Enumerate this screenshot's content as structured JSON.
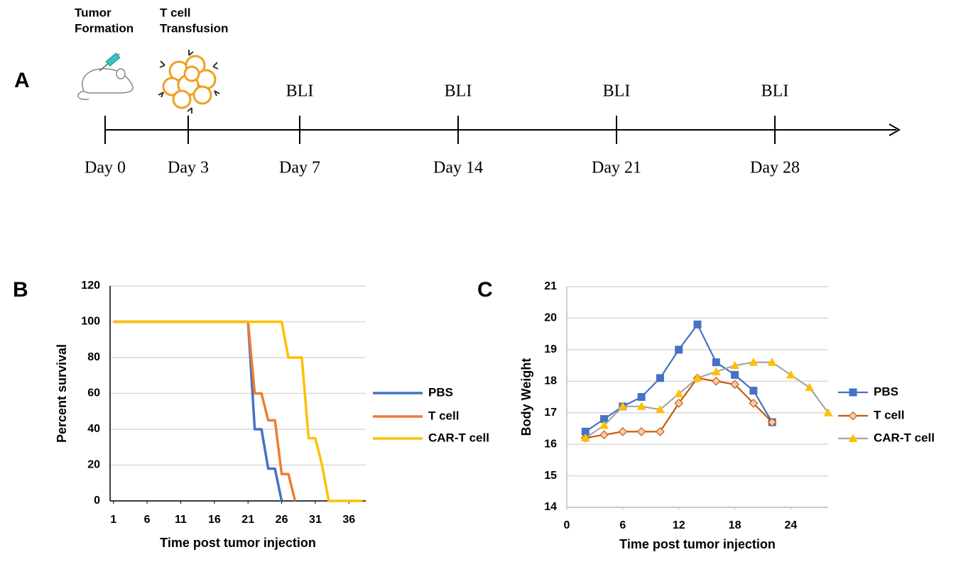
{
  "timeline": {
    "label": "A",
    "events": [
      {
        "day": "Day 0",
        "note": [
          "Tumor",
          "Formation"
        ]
      },
      {
        "day": "Day 3",
        "note": [
          "T cell",
          "Transfusion"
        ]
      },
      {
        "day": "Day 7",
        "note": [
          "BLI"
        ]
      },
      {
        "day": "Day 14",
        "note": [
          "BLI"
        ]
      },
      {
        "day": "Day 21",
        "note": [
          "BLI"
        ]
      },
      {
        "day": "Day 28",
        "note": [
          "BLI"
        ]
      }
    ]
  },
  "chart_data": [
    {
      "type": "line",
      "label": "B",
      "x_label": "Time post tumor injection",
      "y_label": "Percent survival",
      "xlim": [
        0.5,
        38.5
      ],
      "xticks": [
        1,
        6,
        11,
        16,
        21,
        26,
        31,
        36
      ],
      "ylim": [
        0,
        120
      ],
      "yticks": [
        0,
        20,
        40,
        60,
        80,
        100,
        120
      ],
      "grid": true,
      "legend": "right",
      "series": [
        {
          "name": "PBS",
          "color": "#4472c4",
          "marker": "none",
          "x": [
            1,
            21,
            22,
            23,
            24,
            25,
            26
          ],
          "values": [
            100,
            100,
            40,
            40,
            18,
            18,
            0
          ]
        },
        {
          "name": "T cell",
          "color": "#ed7d31",
          "marker": "none",
          "x": [
            1,
            21,
            22,
            23,
            24,
            25,
            26,
            27,
            28
          ],
          "values": [
            100,
            100,
            60,
            60,
            45,
            45,
            15,
            15,
            0
          ]
        },
        {
          "name": "CAR-T cell",
          "color": "#ffc000",
          "marker": "none",
          "x": [
            1,
            26,
            27,
            29,
            30,
            31,
            32,
            33,
            38
          ],
          "values": [
            100,
            100,
            80,
            80,
            35,
            35,
            20,
            0,
            0
          ]
        }
      ]
    },
    {
      "type": "line",
      "label": "C",
      "x_label": "Time post tumor injection",
      "y_label": "Body Weight",
      "xlim": [
        0,
        28
      ],
      "xticks": [
        0,
        6,
        12,
        18,
        24
      ],
      "ylim": [
        14,
        21
      ],
      "yticks": [
        14,
        15,
        16,
        17,
        18,
        19,
        20,
        21
      ],
      "grid": true,
      "legend": "right",
      "series": [
        {
          "name": "PBS",
          "color": "#4472c4",
          "marker": "square",
          "marker_color": "#4472c4",
          "x": [
            2,
            4,
            6,
            8,
            10,
            12,
            14,
            16,
            18,
            20,
            22
          ],
          "values": [
            16.4,
            16.8,
            17.2,
            17.5,
            18.1,
            19.0,
            19.8,
            18.6,
            18.2,
            17.7,
            16.7
          ]
        },
        {
          "name": "T cell",
          "color": "#c55a11",
          "marker": "diamond",
          "marker_color": "#f8cbad",
          "x": [
            2,
            4,
            6,
            8,
            10,
            12,
            14,
            16,
            18,
            20,
            22
          ],
          "values": [
            16.2,
            16.3,
            16.4,
            16.4,
            16.4,
            17.3,
            18.1,
            18.0,
            17.9,
            17.3,
            16.7
          ]
        },
        {
          "name": "CAR-T cell",
          "color": "#a5a5a5",
          "marker": "triangle",
          "marker_color": "#ffc000",
          "x": [
            2,
            4,
            6,
            8,
            10,
            12,
            14,
            16,
            18,
            20,
            22,
            24,
            26,
            28
          ],
          "values": [
            16.2,
            16.6,
            17.2,
            17.2,
            17.1,
            17.6,
            18.1,
            18.3,
            18.5,
            18.6,
            18.6,
            18.2,
            17.8,
            17.0
          ]
        }
      ]
    }
  ]
}
